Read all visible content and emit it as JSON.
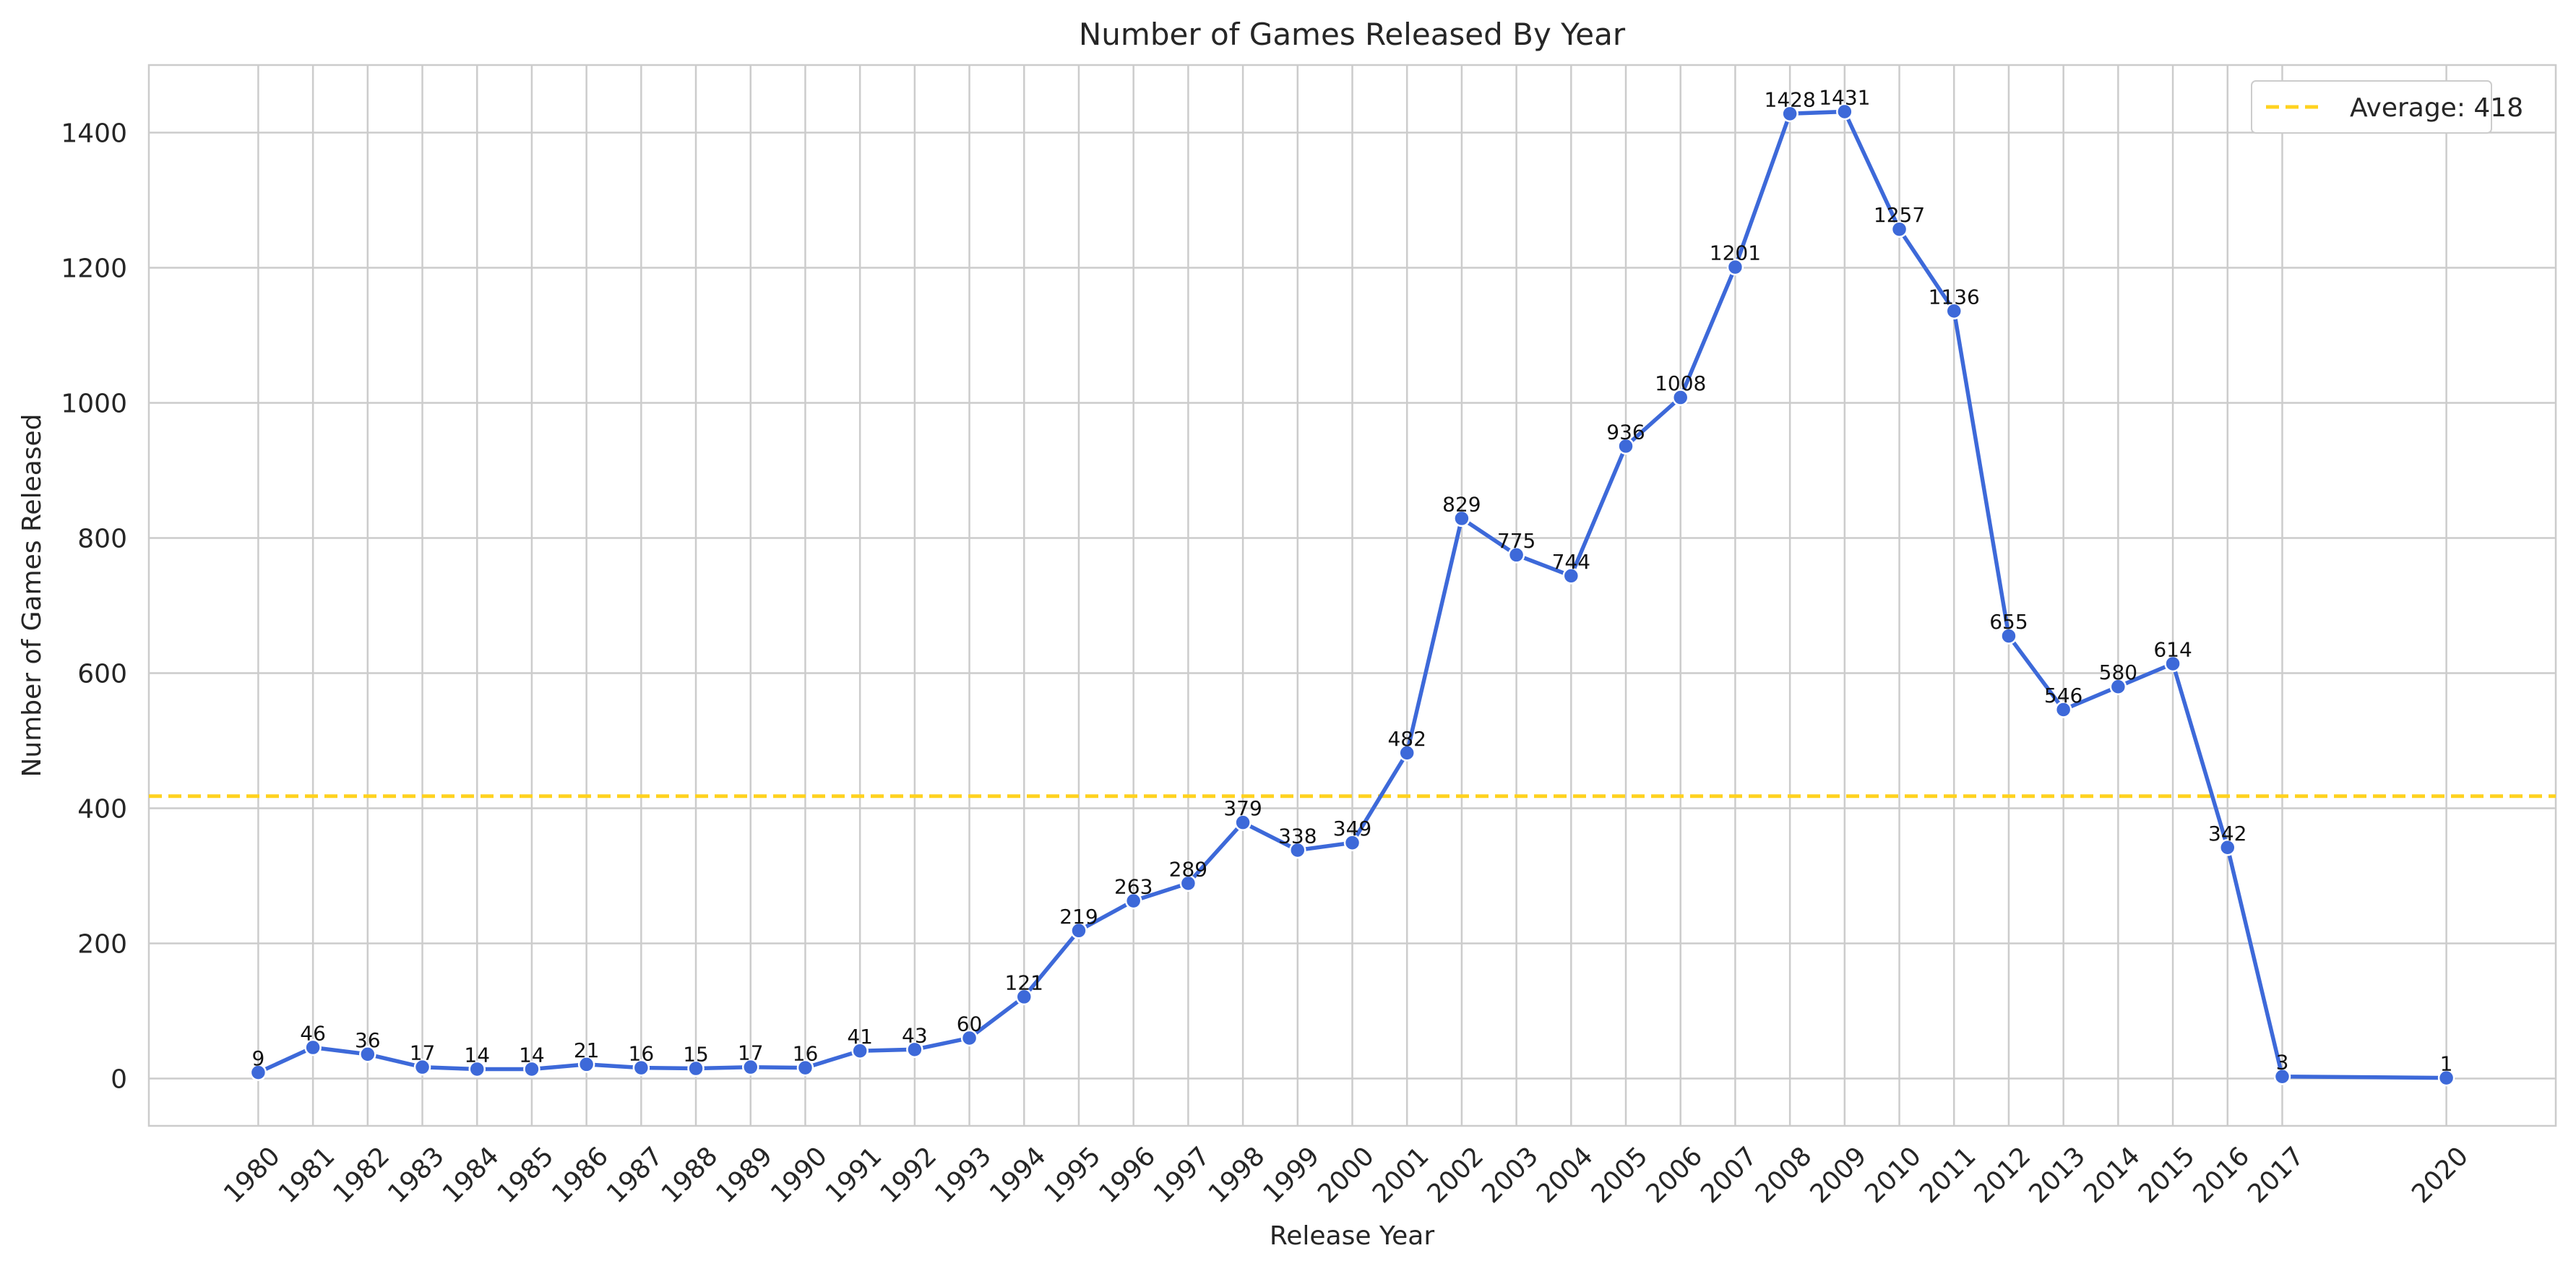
{
  "chart_data": {
    "type": "line",
    "title": "Number of Games Released By Year",
    "xlabel": "Release Year",
    "ylabel": "Number of Games Released",
    "x": [
      1980,
      1981,
      1982,
      1983,
      1984,
      1985,
      1986,
      1987,
      1988,
      1989,
      1990,
      1991,
      1992,
      1993,
      1994,
      1995,
      1996,
      1997,
      1998,
      1999,
      2000,
      2001,
      2002,
      2003,
      2004,
      2005,
      2006,
      2007,
      2008,
      2009,
      2010,
      2011,
      2012,
      2013,
      2014,
      2015,
      2016,
      2017,
      2020
    ],
    "series": [
      {
        "values": [
          9,
          46,
          36,
          17,
          14,
          14,
          21,
          16,
          15,
          17,
          16,
          41,
          43,
          60,
          121,
          219,
          263,
          289,
          379,
          338,
          349,
          482,
          829,
          775,
          744,
          936,
          1008,
          1201,
          1428,
          1431,
          1257,
          1136,
          655,
          546,
          580,
          614,
          342,
          3,
          1
        ],
        "data_labels": [
          "9",
          "46",
          "36",
          "17",
          "14",
          "14",
          "21",
          "16",
          "15",
          "17",
          "16",
          "41",
          "43",
          "60",
          "121",
          "219",
          "263",
          "289",
          "379",
          "338",
          "349",
          "482",
          "829",
          "775",
          "744",
          "936",
          "1008",
          "1201",
          "1428",
          "1431",
          "1257",
          "1136",
          "655",
          "546",
          "580",
          "614",
          "342",
          "3",
          "1"
        ],
        "color": "#3d69d9"
      }
    ],
    "reference_line": {
      "label": "Average: 418",
      "value": 418,
      "color": "#ffd21f",
      "style": "dashed"
    },
    "x_ticks": [
      1980,
      1981,
      1982,
      1983,
      1984,
      1985,
      1986,
      1987,
      1988,
      1989,
      1990,
      1991,
      1992,
      1993,
      1994,
      1995,
      1996,
      1997,
      1998,
      1999,
      2000,
      2001,
      2002,
      2003,
      2004,
      2005,
      2006,
      2007,
      2008,
      2009,
      2010,
      2011,
      2012,
      2013,
      2014,
      2015,
      2016,
      2017,
      2020
    ],
    "y_ticks": [
      0,
      200,
      400,
      600,
      800,
      1000,
      1200,
      1400
    ],
    "xlim": [
      1978,
      2022
    ],
    "ylim": [
      -70,
      1500
    ],
    "grid": true,
    "legend_position": "top-right",
    "x_tick_rotation": -45
  }
}
